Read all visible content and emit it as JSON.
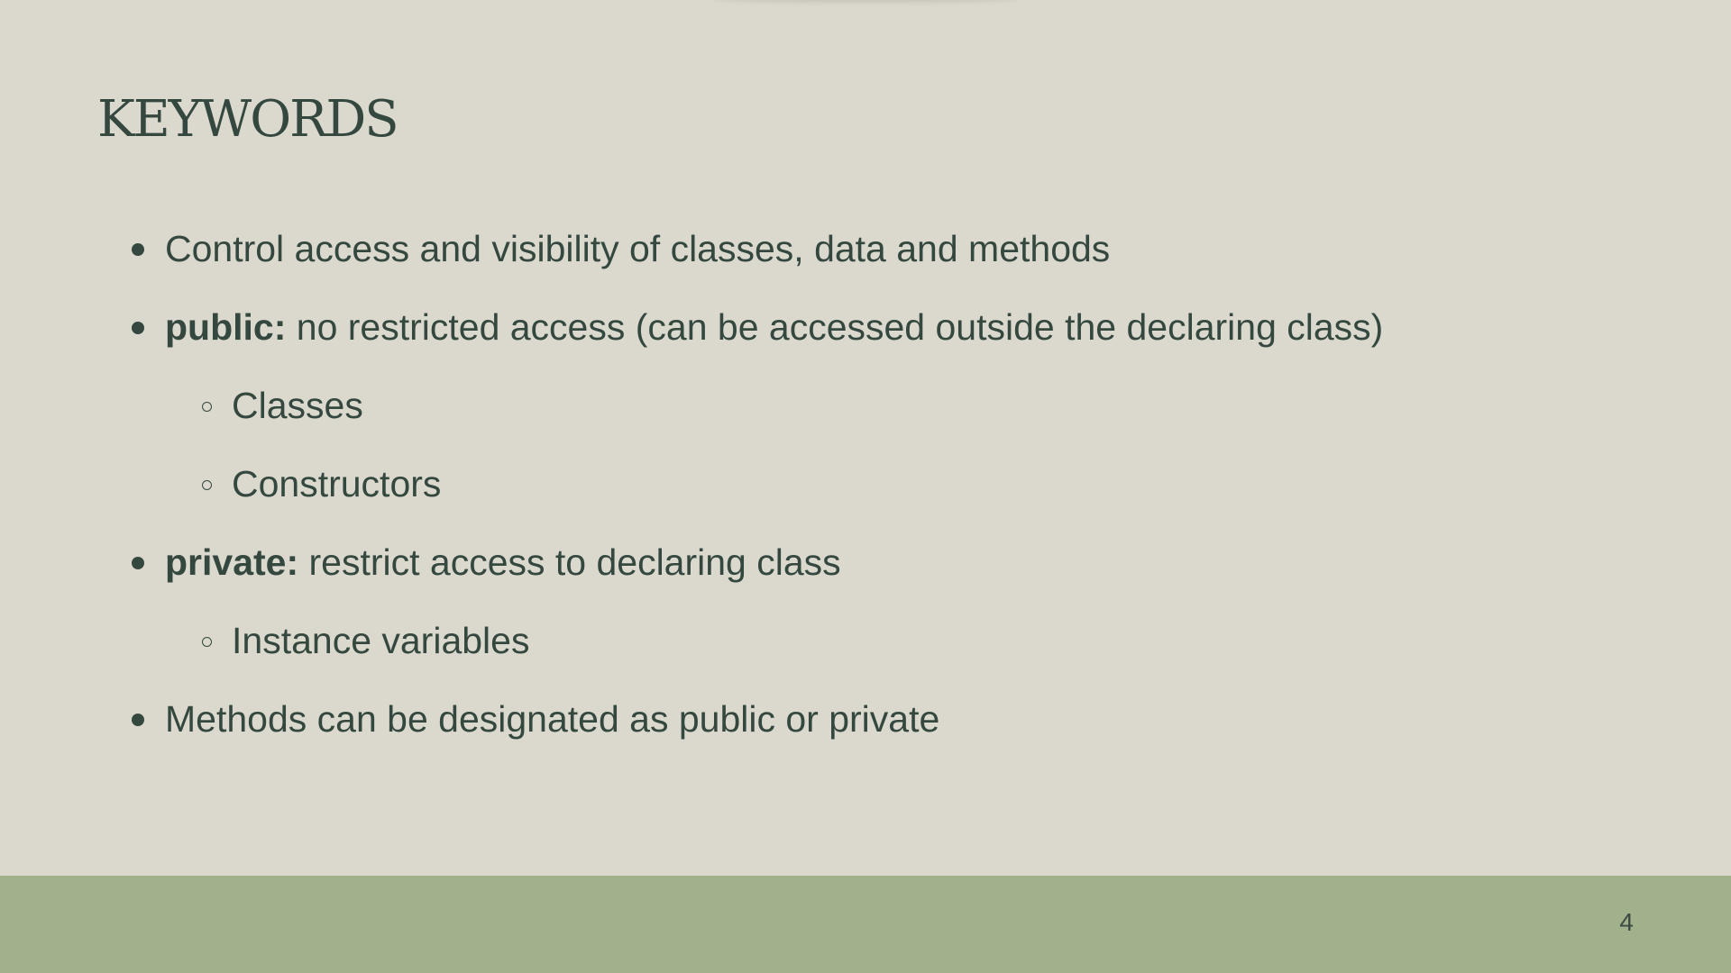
{
  "slide": {
    "title": "KEYWORDS",
    "page_number": "4"
  },
  "bullets": [
    {
      "level": 1,
      "keyword": "",
      "text": "Control access and visibility of classes, data and methods"
    },
    {
      "level": 1,
      "keyword": "public:",
      "text": " no restricted access (can be accessed outside the declaring class)"
    },
    {
      "level": 2,
      "keyword": "",
      "text": "Classes"
    },
    {
      "level": 2,
      "keyword": "",
      "text": "Constructors"
    },
    {
      "level": 1,
      "keyword": "private:",
      "text": " restrict access to declaring class"
    },
    {
      "level": 2,
      "keyword": "",
      "text": "Instance variables"
    },
    {
      "level": 1,
      "keyword": "",
      "text": "Methods can be designated as public or private"
    }
  ],
  "colors": {
    "background": "#dbd9ce",
    "text": "#35483f",
    "footer": "#a1b18b"
  }
}
